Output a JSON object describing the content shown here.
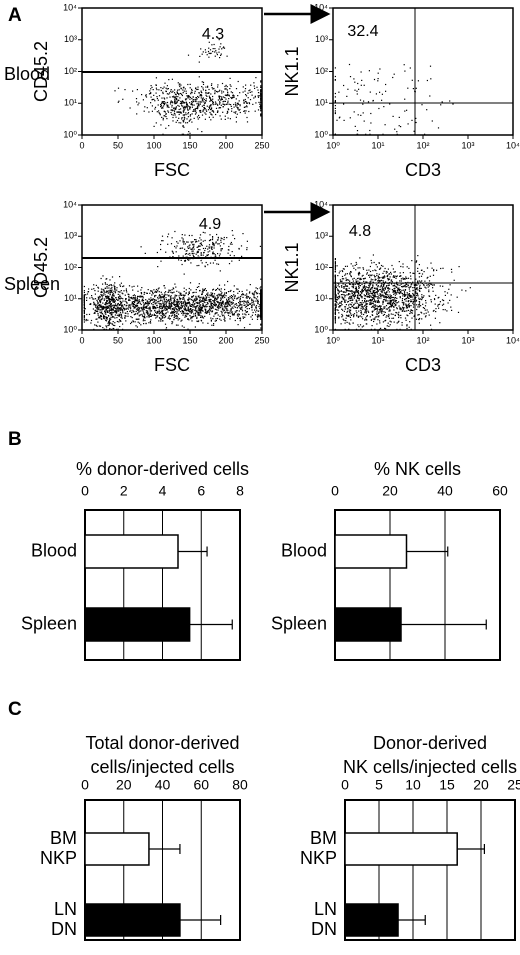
{
  "panel_labels": [
    "A",
    "B",
    "C"
  ],
  "row_labels": [
    "Blood",
    "Spleen"
  ],
  "chart_data": [
    {
      "type": "flow",
      "xlabel": "FSC",
      "ylabel": "CD45.2",
      "gate_percent": 4.3,
      "xlim": [
        0,
        250
      ],
      "xticks": [
        0,
        50,
        100,
        150,
        200,
        250
      ],
      "xlog": false,
      "ylim": [
        1,
        10000
      ],
      "ylog": true,
      "yticks": [
        {
          "value": 1,
          "label": "10⁰"
        },
        {
          "value": 10,
          "label": "10¹"
        },
        {
          "value": 100,
          "label": "10²"
        },
        {
          "value": 1000,
          "label": "10³"
        },
        {
          "value": 10000,
          "label": "10⁴"
        }
      ]
    },
    {
      "type": "flow",
      "xlabel": "CD3",
      "ylabel": "NK1.1",
      "gate_percent": 32.4,
      "xlim": [
        1,
        10000
      ],
      "xlog": true,
      "xticks": [
        {
          "value": 1,
          "label": "10⁰"
        },
        {
          "value": 10,
          "label": "10¹"
        },
        {
          "value": 100,
          "label": "10²"
        },
        {
          "value": 1000,
          "label": "10³"
        },
        {
          "value": 10000,
          "label": "10⁴"
        }
      ],
      "ylim": [
        1,
        10000
      ],
      "ylog": true,
      "yticks": [
        {
          "value": 1,
          "label": "10⁰"
        },
        {
          "value": 10,
          "label": "10¹"
        },
        {
          "value": 100,
          "label": "10²"
        },
        {
          "value": 1000,
          "label": "10³"
        },
        {
          "value": 10000,
          "label": "10⁴"
        }
      ]
    },
    {
      "type": "flow",
      "xlabel": "FSC",
      "ylabel": "CD45.2",
      "gate_percent": 4.9,
      "xlim": [
        0,
        250
      ],
      "xticks": [
        0,
        50,
        100,
        150,
        200,
        250
      ],
      "xlog": false,
      "ylim": [
        1,
        10000
      ],
      "ylog": true,
      "yticks": [
        {
          "value": 1,
          "label": "10⁰"
        },
        {
          "value": 10,
          "label": "10¹"
        },
        {
          "value": 100,
          "label": "10²"
        },
        {
          "value": 1000,
          "label": "10³"
        },
        {
          "value": 10000,
          "label": "10⁴"
        }
      ]
    },
    {
      "type": "flow",
      "xlabel": "CD3",
      "ylabel": "NK1.1",
      "gate_percent": 4.8,
      "xlim": [
        1,
        10000
      ],
      "xlog": true,
      "xticks": [
        {
          "value": 1,
          "label": "10⁰"
        },
        {
          "value": 10,
          "label": "10¹"
        },
        {
          "value": 100,
          "label": "10²"
        },
        {
          "value": 1000,
          "label": "10³"
        },
        {
          "value": 10000,
          "label": "10⁴"
        }
      ],
      "ylim": [
        1,
        10000
      ],
      "ylog": true,
      "yticks": [
        {
          "value": 1,
          "label": "10⁰"
        },
        {
          "value": 10,
          "label": "10¹"
        },
        {
          "value": 100,
          "label": "10²"
        },
        {
          "value": 1000,
          "label": "10³"
        },
        {
          "value": 10000,
          "label": "10⁴"
        }
      ]
    },
    {
      "type": "bar",
      "title": [
        "% donor-derived cells"
      ],
      "categories": [
        [
          "Blood"
        ],
        [
          "Spleen"
        ]
      ],
      "values": [
        4.8,
        5.4
      ],
      "errors": [
        1.5,
        2.2
      ],
      "colors": [
        "#ffffff",
        "#000000"
      ],
      "xlim": [
        0,
        8
      ],
      "xticks": [
        0,
        2,
        4,
        6,
        8
      ],
      "grid": true
    },
    {
      "type": "bar",
      "title": [
        "% NK cells"
      ],
      "categories": [
        [
          "Blood"
        ],
        [
          "Spleen"
        ]
      ],
      "values": [
        26,
        24
      ],
      "errors": [
        15,
        31
      ],
      "colors": [
        "#ffffff",
        "#000000"
      ],
      "xlim": [
        0,
        60
      ],
      "xticks": [
        0,
        20,
        40,
        60
      ],
      "grid": true
    },
    {
      "type": "bar",
      "title": [
        "Total donor-derived",
        "cells/injected cells"
      ],
      "categories": [
        [
          "BM",
          "NKP"
        ],
        [
          "LN",
          "DN"
        ]
      ],
      "values": [
        33,
        49
      ],
      "errors": [
        16,
        21
      ],
      "colors": [
        "#ffffff",
        "#000000"
      ],
      "xlim": [
        0,
        80
      ],
      "xticks": [
        0,
        20,
        40,
        60,
        80
      ],
      "grid": true
    },
    {
      "type": "bar",
      "title": [
        "Donor-derived",
        "NK cells/injected cells"
      ],
      "categories": [
        [
          "BM",
          "NKP"
        ],
        [
          "LN",
          "DN"
        ]
      ],
      "values": [
        16.5,
        7.8
      ],
      "errors": [
        4,
        4
      ],
      "colors": [
        "#ffffff",
        "#000000"
      ],
      "xlim": [
        0,
        25
      ],
      "xticks": [
        0,
        5,
        10,
        15,
        20,
        25
      ],
      "grid": true
    }
  ]
}
